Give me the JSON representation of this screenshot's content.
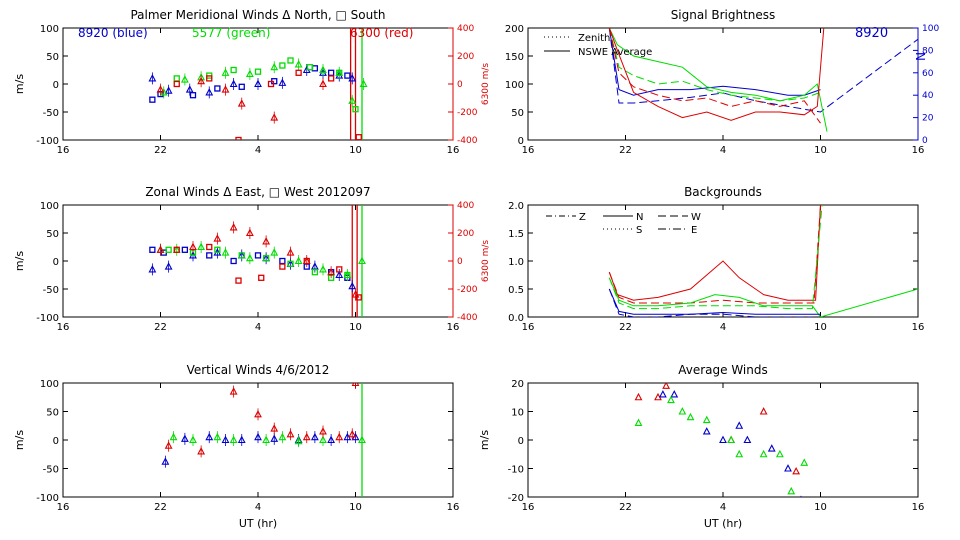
{
  "colors": {
    "blue": "#0000cc",
    "green": "#00dd00",
    "red": "#dd0000",
    "black": "#000000"
  },
  "chart_data": [
    {
      "id": "meridional",
      "type": "scatter",
      "title": "Palmer Meridional Winds Δ North, □ South",
      "ylabel": "m/s",
      "y2label": "6300 m/s",
      "xlim": [
        16,
        40
      ],
      "ylim": [
        -100,
        100
      ],
      "y2lim": [
        -400,
        400
      ],
      "xticks": [
        16,
        22,
        28,
        34,
        40
      ],
      "xticklabels": [
        "16",
        "22",
        "4",
        "10",
        "16"
      ],
      "yticks": [
        -100,
        -50,
        0,
        50,
        100
      ],
      "y2ticks": [
        -400,
        -200,
        0,
        200,
        400
      ],
      "annotations": [
        {
          "text": "8920 (blue)",
          "color": "blue"
        },
        {
          "text": "5577 (green)",
          "color": "green"
        },
        {
          "text": "6300 (red)",
          "color": "red"
        }
      ],
      "vlines": [
        {
          "x": 33.7,
          "color": "red"
        },
        {
          "x": 34.0,
          "color": "red"
        },
        {
          "x": 34.4,
          "color": "green"
        }
      ],
      "series": [
        {
          "color": "blue",
          "marker": "triangle",
          "x": [
            21.5,
            22.5,
            23.8,
            25.0,
            26.5,
            28.0,
            29.5,
            31.0,
            32.0,
            33.0,
            33.8
          ],
          "y": [
            10,
            -12,
            -10,
            -15,
            0,
            0,
            2,
            25,
            20,
            15,
            10
          ]
        },
        {
          "color": "blue",
          "marker": "square",
          "x": [
            21.5,
            22.0,
            24.0,
            25.5,
            27.0,
            29.0,
            31.5,
            32.5,
            33.5
          ],
          "y": [
            -28,
            -18,
            -20,
            -8,
            -5,
            5,
            28,
            20,
            15
          ]
        },
        {
          "color": "green",
          "marker": "triangle",
          "x": [
            22.2,
            23.5,
            24.5,
            26.0,
            27.5,
            29.0,
            30.5,
            32.0,
            33.0,
            33.8,
            34.5
          ],
          "y": [
            -15,
            8,
            12,
            20,
            18,
            30,
            35,
            25,
            20,
            -30,
            0
          ]
        },
        {
          "color": "green",
          "marker": "square",
          "x": [
            23.0,
            25.0,
            26.5,
            28.0,
            29.5,
            30.0,
            31.2,
            33.0,
            34.0
          ],
          "y": [
            10,
            15,
            25,
            22,
            33,
            42,
            30,
            20,
            -45
          ]
        },
        {
          "color": "red",
          "marker": "triangle",
          "x": [
            22.0,
            24.5,
            26.0,
            27.0,
            29.0,
            32.0
          ],
          "y": [
            -10,
            5,
            -10,
            -35,
            -60,
            0
          ]
        },
        {
          "color": "red",
          "marker": "square",
          "x": [
            23.0,
            25.0,
            26.8,
            28.8,
            30.5,
            32.5,
            34.2
          ],
          "y": [
            0,
            10,
            -100,
            0,
            20,
            10,
            -95
          ]
        }
      ]
    },
    {
      "id": "brightness",
      "type": "line",
      "title": "Signal Brightness",
      "xlim": [
        16,
        40
      ],
      "ylim": [
        0,
        200
      ],
      "y2lim": [
        0,
        100
      ],
      "xticks": [
        16,
        22,
        28,
        34,
        40
      ],
      "xticklabels": [
        "16",
        "22",
        "4",
        "10",
        "16"
      ],
      "yticks": [
        0,
        50,
        100,
        150,
        200
      ],
      "y2ticks": [
        0,
        20,
        40,
        60,
        80,
        100
      ],
      "annotations": [
        {
          "text": "8920",
          "color": "blue"
        },
        {
          "text": "N",
          "color": "blue"
        }
      ],
      "legend": [
        {
          "label": "Zenith",
          "dash": "1,3"
        },
        {
          "label": "NSWE Average",
          "dash": ""
        }
      ],
      "series": [
        {
          "color": "blue",
          "dash": "",
          "axis": "y2",
          "x": [
            21.0,
            21.6,
            22.5,
            24.0,
            26.0,
            28.0,
            30.0,
            32.0,
            33.0,
            34.0
          ],
          "y": [
            100,
            45,
            40,
            45,
            45,
            48,
            45,
            40,
            40,
            45
          ]
        },
        {
          "color": "blue",
          "dash": "8,4",
          "axis": "y2",
          "x": [
            21.0,
            21.6,
            22.5,
            24.0,
            26.0,
            28.0,
            30.0,
            32.0,
            34.0,
            40.0
          ],
          "y": [
            100,
            33,
            33,
            35,
            38,
            42,
            35,
            30,
            25,
            90
          ]
        },
        {
          "color": "green",
          "dash": "",
          "x": [
            21.0,
            21.5,
            22.5,
            24.0,
            25.5,
            27.0,
            28.5,
            30.0,
            31.5,
            33.0,
            33.8,
            34.4
          ],
          "y": [
            200,
            170,
            150,
            140,
            130,
            95,
            85,
            80,
            70,
            80,
            100,
            15
          ]
        },
        {
          "color": "green",
          "dash": "8,4",
          "x": [
            21.0,
            21.6,
            22.5,
            24.0,
            25.5,
            27.0,
            28.5,
            30.0,
            31.5,
            33.0,
            34.0
          ],
          "y": [
            200,
            130,
            115,
            100,
            105,
            90,
            80,
            75,
            70,
            75,
            85
          ]
        },
        {
          "color": "red",
          "dash": "",
          "x": [
            21.0,
            21.5,
            22.5,
            24.0,
            25.5,
            27.0,
            28.5,
            30.0,
            31.5,
            33.0,
            33.8,
            34.2
          ],
          "y": [
            200,
            160,
            85,
            60,
            40,
            50,
            35,
            50,
            50,
            45,
            60,
            200
          ]
        },
        {
          "color": "red",
          "dash": "8,4",
          "x": [
            21.0,
            21.6,
            22.5,
            24.0,
            25.5,
            27.0,
            28.5,
            30.0,
            31.5,
            33.0,
            34.0
          ],
          "y": [
            200,
            120,
            95,
            80,
            70,
            75,
            60,
            70,
            60,
            70,
            30
          ]
        }
      ]
    },
    {
      "id": "zonal",
      "type": "scatter",
      "title": "Zonal Winds Δ East, □ West 2012097",
      "ylabel": "m/s",
      "y2label": "6300 m/s",
      "xlim": [
        16,
        40
      ],
      "ylim": [
        -100,
        100
      ],
      "y2lim": [
        -400,
        400
      ],
      "xticks": [
        16,
        22,
        28,
        34,
        40
      ],
      "xticklabels": [
        "16",
        "22",
        "4",
        "10",
        "16"
      ],
      "yticks": [
        -100,
        -50,
        0,
        50,
        100
      ],
      "y2ticks": [
        -400,
        -200,
        0,
        200,
        400
      ],
      "vlines": [
        {
          "x": 33.8,
          "color": "red"
        },
        {
          "x": 34.1,
          "color": "red"
        },
        {
          "x": 34.4,
          "color": "green"
        }
      ],
      "series": [
        {
          "color": "blue",
          "marker": "triangle",
          "x": [
            21.5,
            22.5,
            24.0,
            25.5,
            27.0,
            28.5,
            30.0,
            31.5,
            33.0,
            33.8
          ],
          "y": [
            -15,
            -10,
            10,
            15,
            10,
            5,
            -5,
            -10,
            -25,
            -45
          ]
        },
        {
          "color": "blue",
          "marker": "square",
          "x": [
            21.5,
            22.2,
            23.5,
            25.0,
            26.5,
            28.0,
            29.5,
            31.0,
            32.5,
            33.5
          ],
          "y": [
            20,
            15,
            20,
            10,
            0,
            10,
            0,
            -10,
            -20,
            -30
          ]
        },
        {
          "color": "green",
          "marker": "triangle",
          "x": [
            22.0,
            23.0,
            24.5,
            26.0,
            27.5,
            29.0,
            30.5,
            32.0,
            33.5,
            34.4
          ],
          "y": [
            20,
            20,
            25,
            15,
            5,
            15,
            0,
            -15,
            -25,
            0
          ]
        },
        {
          "color": "green",
          "marker": "square",
          "x": [
            22.5,
            24.0,
            25.5,
            27.0,
            28.5,
            30.0,
            31.5,
            32.5,
            33.5
          ],
          "y": [
            20,
            15,
            20,
            10,
            5,
            -5,
            -20,
            -30,
            -25
          ]
        },
        {
          "color": "red",
          "marker": "triangle",
          "x": [
            22.0,
            24.0,
            25.5,
            26.5,
            27.5,
            28.5,
            30.0,
            31.0,
            32.5,
            34.0
          ],
          "y": [
            20,
            25,
            40,
            60,
            50,
            35,
            15,
            0,
            -20,
            -60
          ]
        },
        {
          "color": "red",
          "marker": "square",
          "x": [
            23.0,
            25.0,
            26.8,
            28.2,
            29.5,
            31.0,
            33.0,
            34.2
          ],
          "y": [
            20,
            25,
            -35,
            -30,
            -10,
            0,
            -15,
            -65
          ]
        }
      ]
    },
    {
      "id": "backgrounds",
      "type": "line",
      "title": "Backgrounds",
      "xlim": [
        16,
        40
      ],
      "ylim": [
        0,
        2.0
      ],
      "xticks": [
        16,
        22,
        28,
        34,
        40
      ],
      "xticklabels": [
        "16",
        "22",
        "4",
        "10",
        "16"
      ],
      "yticks": [
        0,
        0.5,
        1.0,
        1.5,
        2.0
      ],
      "yticklabels": [
        "0.0",
        "0.5",
        "1.0",
        "1.5",
        "2.0"
      ],
      "legend": [
        {
          "label": "Z",
          "dash": "6,3,1,3"
        },
        {
          "label": "N",
          "dash": ""
        },
        {
          "label": "W",
          "dash": "8,4"
        },
        {
          "label": "S",
          "dash": "1,3"
        },
        {
          "label": "E",
          "dash": "8,3,1,3"
        }
      ],
      "series": [
        {
          "color": "red",
          "dash": "",
          "x": [
            21.0,
            21.5,
            22.5,
            24.0,
            26.0,
            27.0,
            28.0,
            29.0,
            30.5,
            32.0,
            33.0,
            33.7,
            34.0
          ],
          "y": [
            0.8,
            0.4,
            0.3,
            0.35,
            0.5,
            0.75,
            1.0,
            0.7,
            0.4,
            0.3,
            0.3,
            0.3,
            2.0
          ]
        },
        {
          "color": "red",
          "dash": "8,4",
          "x": [
            21.0,
            21.6,
            22.5,
            24.0,
            26.0,
            28.0,
            30.0,
            32.0,
            33.6,
            34.0
          ],
          "y": [
            0.8,
            0.35,
            0.25,
            0.25,
            0.25,
            0.3,
            0.25,
            0.25,
            0.25,
            2.0
          ]
        },
        {
          "color": "green",
          "dash": "",
          "x": [
            21.0,
            21.6,
            22.5,
            24.0,
            26.0,
            27.5,
            29.0,
            30.5,
            32.0,
            33.5,
            34.0,
            40.0
          ],
          "y": [
            0.7,
            0.3,
            0.2,
            0.2,
            0.25,
            0.4,
            0.35,
            0.2,
            0.2,
            0.2,
            0.0,
            0.5
          ]
        },
        {
          "color": "green",
          "dash": "8,4",
          "x": [
            21.0,
            21.6,
            22.5,
            24.0,
            26.0,
            28.0,
            30.0,
            32.0,
            33.5,
            34.1
          ],
          "y": [
            0.7,
            0.25,
            0.15,
            0.15,
            0.2,
            0.2,
            0.2,
            0.15,
            0.15,
            2.0
          ]
        },
        {
          "color": "blue",
          "dash": "",
          "x": [
            21.0,
            21.6,
            22.5,
            24.0,
            26.0,
            28.0,
            30.0,
            32.0,
            33.5,
            34.0
          ],
          "y": [
            0.5,
            0.1,
            0.05,
            0.05,
            0.05,
            0.08,
            0.05,
            0.05,
            0.05,
            0.05
          ]
        },
        {
          "color": "blue",
          "dash": "8,4",
          "x": [
            21.0,
            21.6,
            22.5,
            24.0,
            26.0,
            28.0,
            30.0,
            32.0,
            33.5
          ],
          "y": [
            0.5,
            0.05,
            0.0,
            0.0,
            0.05,
            0.05,
            0.0,
            0.0,
            0.0
          ]
        }
      ]
    },
    {
      "id": "vertical",
      "type": "scatter",
      "title": "Vertical Winds 4/6/2012",
      "ylabel": "m/s",
      "xlabel": "UT (hr)",
      "xlim": [
        16,
        40
      ],
      "ylim": [
        -100,
        100
      ],
      "xticks": [
        16,
        22,
        28,
        34,
        40
      ],
      "xticklabels": [
        "16",
        "22",
        "4",
        "10",
        "16"
      ],
      "yticks": [
        -100,
        -50,
        0,
        50,
        100
      ],
      "vlines": [
        {
          "x": 34.4,
          "color": "green"
        }
      ],
      "series": [
        {
          "color": "blue",
          "marker": "triangle",
          "x": [
            22.3,
            23.5,
            25.0,
            26.0,
            27.0,
            28.0,
            29.0,
            30.5,
            31.5,
            32.5,
            33.5,
            34.0
          ],
          "y": [
            -38,
            2,
            5,
            0,
            0,
            5,
            2,
            0,
            5,
            0,
            5,
            5
          ]
        },
        {
          "color": "green",
          "marker": "triangle",
          "x": [
            22.8,
            24.0,
            25.5,
            26.5,
            28.5,
            29.5,
            30.5,
            32.0,
            34.4
          ],
          "y": [
            5,
            0,
            5,
            0,
            0,
            5,
            -2,
            0,
            0
          ]
        },
        {
          "color": "red",
          "marker": "triangle",
          "x": [
            22.5,
            24.5,
            26.5,
            28.0,
            29.0,
            30.0,
            31.0,
            32.0,
            33.0,
            33.8
          ],
          "y": [
            -10,
            -20,
            85,
            45,
            20,
            10,
            5,
            15,
            5,
            10
          ]
        },
        {
          "color": "red",
          "marker": "triangle",
          "x": [
            34.0
          ],
          "y": [
            100
          ]
        }
      ]
    },
    {
      "id": "average",
      "type": "scatter",
      "title": "Average Winds",
      "ylabel": "m/s",
      "xlabel": "UT (hr)",
      "xlim": [
        16,
        40
      ],
      "ylim": [
        -20,
        20
      ],
      "xticks": [
        16,
        22,
        28,
        34,
        40
      ],
      "xticklabels": [
        "16",
        "22",
        "4",
        "10",
        "16"
      ],
      "yticks": [
        -20,
        -10,
        0,
        10,
        20
      ],
      "series": [
        {
          "color": "red",
          "marker": "triangle",
          "x": [
            22.8,
            24.0,
            24.5,
            28.5,
            30.5,
            32.5
          ],
          "y": [
            15,
            15,
            19,
            0,
            10,
            -11
          ]
        },
        {
          "color": "blue",
          "marker": "triangle",
          "x": [
            24.3,
            25.0,
            27.0,
            28.0,
            29.0,
            29.5,
            31.0,
            32.0,
            32.8
          ],
          "y": [
            16,
            16,
            3,
            0,
            5,
            0,
            -3,
            -10,
            -21
          ]
        },
        {
          "color": "green",
          "marker": "triangle",
          "x": [
            22.8,
            24.8,
            25.5,
            26.0,
            27.0,
            28.5,
            29.0,
            30.5,
            31.5,
            32.2,
            33.0
          ],
          "y": [
            6,
            14,
            10,
            8,
            7,
            0,
            -5,
            -5,
            -5,
            -18,
            -8
          ]
        }
      ]
    }
  ]
}
